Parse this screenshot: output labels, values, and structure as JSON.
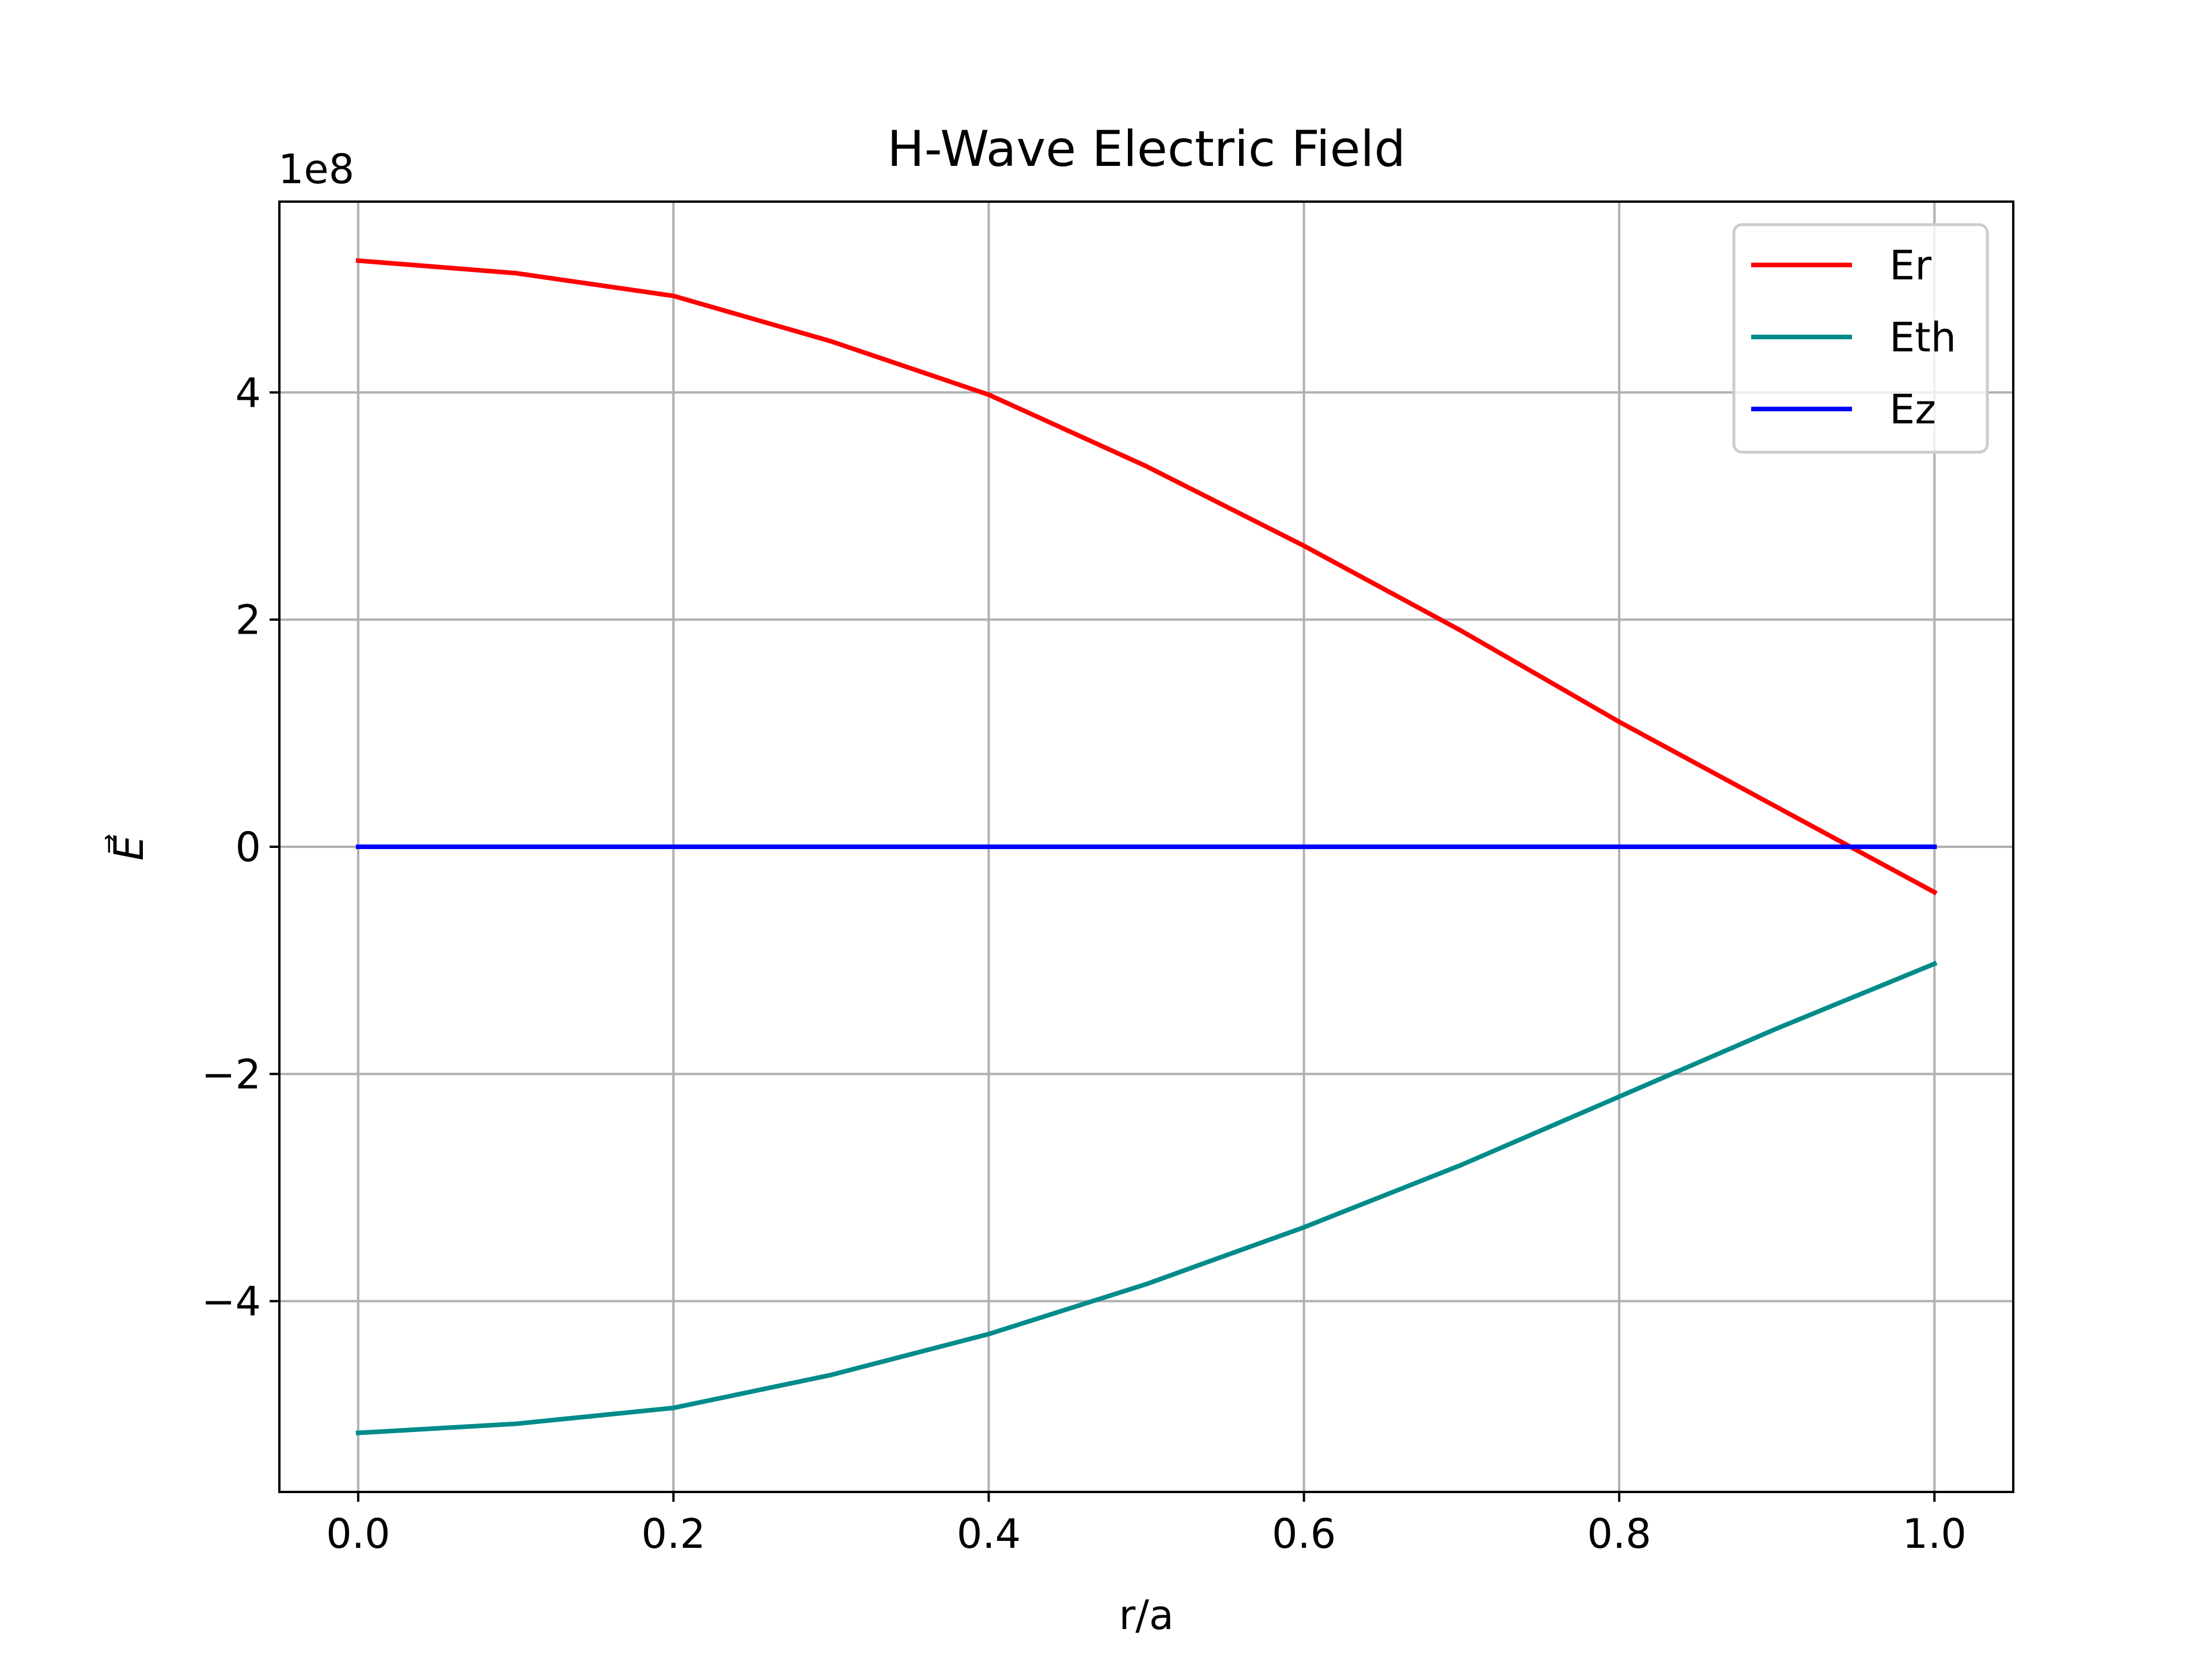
{
  "chart_data": {
    "type": "line",
    "title": "H-Wave Electric Field",
    "xlabel": "r/a",
    "ylabel": "E⃗",
    "offset_text": "1e8",
    "xlim": [
      -0.05,
      1.05
    ],
    "ylim": [
      -5.68,
      5.68
    ],
    "y_scale": 100000000,
    "grid": true,
    "legend_position": "top-right",
    "x_ticks": [
      0.0,
      0.2,
      0.4,
      0.6,
      0.8,
      1.0
    ],
    "x_tick_labels": [
      "0.0",
      "0.2",
      "0.4",
      "0.6",
      "0.8",
      "1.0"
    ],
    "y_ticks": [
      -4,
      -2,
      0,
      2,
      4
    ],
    "y_tick_labels": [
      "−4",
      "−2",
      "0",
      "2",
      "4"
    ],
    "x": [
      0.0,
      0.1,
      0.2,
      0.3,
      0.4,
      0.5,
      0.6,
      0.7,
      0.8,
      0.9,
      1.0
    ],
    "series": [
      {
        "name": "Er",
        "color": "#ff0000",
        "values": [
          5.16,
          5.05,
          4.85,
          4.45,
          3.98,
          3.35,
          2.65,
          1.9,
          1.1,
          0.35,
          -0.4
        ]
      },
      {
        "name": "Eth",
        "color": "#008b8b",
        "values": [
          -5.16,
          -5.08,
          -4.94,
          -4.65,
          -4.29,
          -3.85,
          -3.35,
          -2.8,
          -2.2,
          -1.6,
          -1.03
        ]
      },
      {
        "name": "Ez",
        "color": "#0000ff",
        "values": [
          0,
          0,
          0,
          0,
          0,
          0,
          0,
          0,
          0,
          0,
          0
        ]
      }
    ]
  }
}
